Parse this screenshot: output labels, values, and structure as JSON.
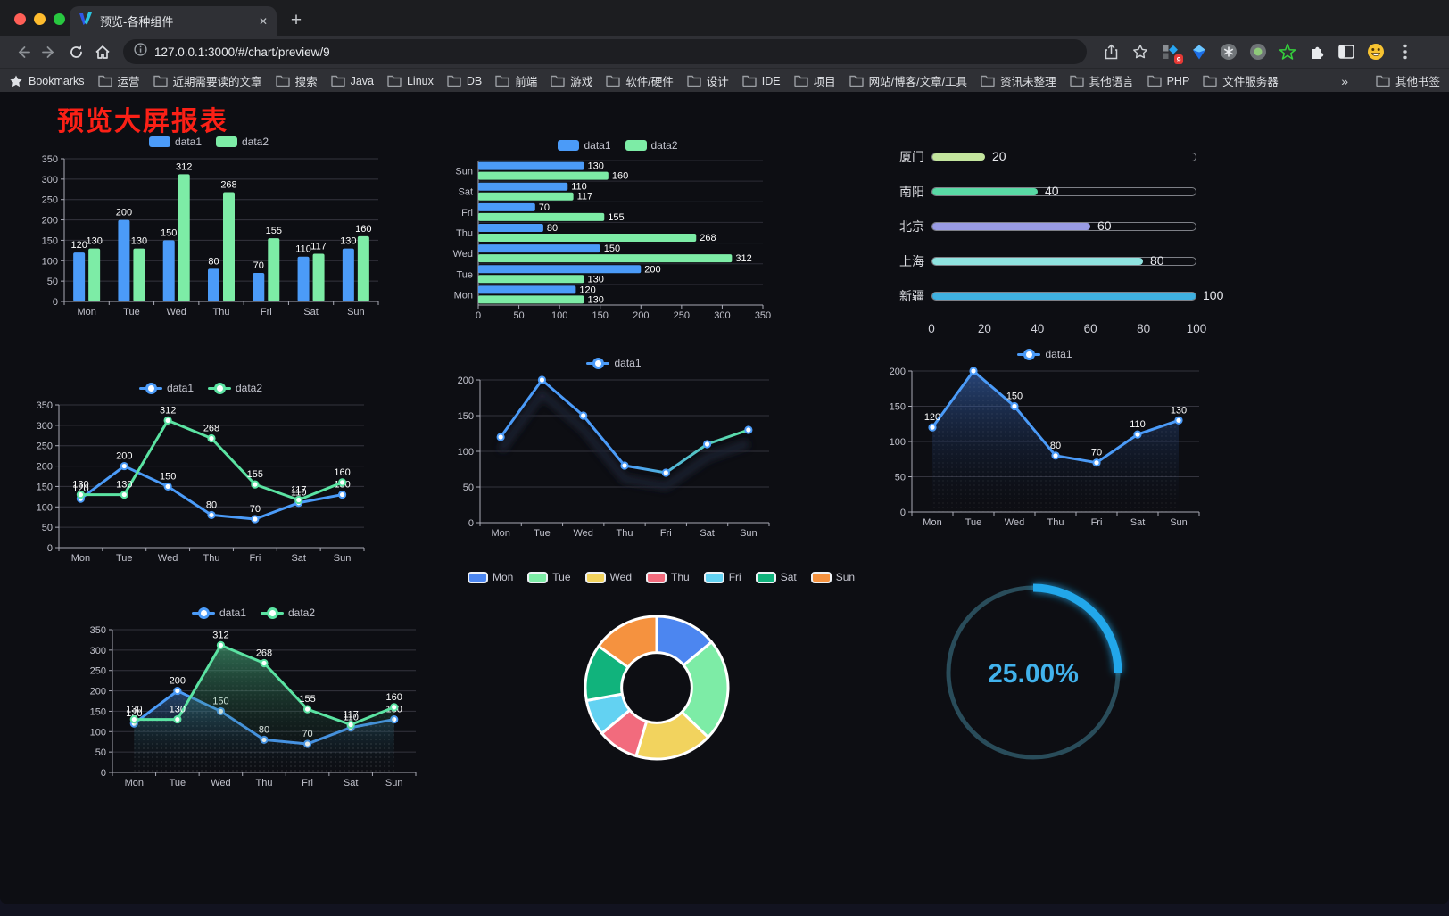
{
  "browser": {
    "tab_title": "预览-各种组件",
    "url": "127.0.0.1:3000/#/chart/preview/9",
    "bookmarks_label": "Bookmarks",
    "bookmarks": [
      "运营",
      "近期需要读的文章",
      "搜索",
      "Java",
      "Linux",
      "DB",
      "前端",
      "游戏",
      "软件/硬件",
      "设计",
      "IDE",
      "项目",
      "网站/博客/文章/工具",
      "资讯未整理",
      "其他语言",
      "PHP",
      "文件服务器"
    ],
    "bookmarks_overflow": "»",
    "other_bookmarks": "其他书签",
    "extension_badge": "9"
  },
  "page": {
    "title": "预览大屏报表",
    "title_color": "#fb2016",
    "background": "#0d0e13"
  },
  "chart_data": [
    {
      "slot": "c1",
      "type": "bar",
      "categories": [
        "Mon",
        "Tue",
        "Wed",
        "Thu",
        "Fri",
        "Sat",
        "Sun"
      ],
      "series": [
        {
          "name": "data1",
          "color": "#4b9bf8",
          "values": [
            120,
            200,
            150,
            80,
            70,
            110,
            130
          ]
        },
        {
          "name": "data2",
          "color": "#7deca6",
          "values": [
            130,
            130,
            312,
            268,
            155,
            117,
            160
          ]
        }
      ],
      "yticks": [
        0,
        50,
        100,
        150,
        200,
        250,
        300,
        350
      ],
      "ymax": 350,
      "labels": true,
      "legend_position": "top",
      "grid": true
    },
    {
      "slot": "c2",
      "type": "hbar",
      "categories": [
        "Mon",
        "Tue",
        "Wed",
        "Thu",
        "Fri",
        "Sat",
        "Sun"
      ],
      "series": [
        {
          "name": "data1",
          "color": "#4b9bf8",
          "values": [
            120,
            200,
            150,
            80,
            70,
            110,
            130
          ]
        },
        {
          "name": "data2",
          "color": "#7deca6",
          "values": [
            130,
            130,
            312,
            268,
            155,
            117,
            160
          ]
        }
      ],
      "xticks": [
        0,
        50,
        100,
        150,
        200,
        250,
        300,
        350
      ],
      "xmax": 350,
      "labels": true,
      "legend_position": "top"
    },
    {
      "slot": "c3",
      "type": "progress",
      "max": 100,
      "rows": [
        {
          "label": "厦门",
          "value": 20,
          "color": "#c3e59e"
        },
        {
          "label": "南阳",
          "value": 40,
          "color": "#59d9a5"
        },
        {
          "label": "北京",
          "value": 60,
          "color": "#999be4"
        },
        {
          "label": "上海",
          "value": 80,
          "color": "#8fe3e0"
        },
        {
          "label": "新疆",
          "value": 100,
          "color": "#3fb0e0"
        }
      ],
      "xticks": [
        0,
        20,
        40,
        60,
        80,
        100
      ]
    },
    {
      "slot": "c4",
      "type": "line",
      "categories": [
        "Mon",
        "Tue",
        "Wed",
        "Thu",
        "Fri",
        "Sat",
        "Sun"
      ],
      "series": [
        {
          "name": "data1",
          "color": "#4b9bf8",
          "values": [
            120,
            200,
            150,
            80,
            70,
            110,
            130
          ]
        },
        {
          "name": "data2",
          "color": "#5be3a2",
          "values": [
            130,
            130,
            312,
            268,
            155,
            117,
            160
          ]
        }
      ],
      "yticks": [
        0,
        50,
        100,
        150,
        200,
        250,
        300,
        350
      ],
      "ymax": 350,
      "labels": true,
      "markers": true,
      "legend_position": "top"
    },
    {
      "slot": "c5",
      "type": "line",
      "categories": [
        "Mon",
        "Tue",
        "Wed",
        "Thu",
        "Fri",
        "Sat",
        "Sun"
      ],
      "series": [
        {
          "name": "data1",
          "color": "#4b9bf8",
          "gradient": [
            "#4b9bf8",
            "#4b9bf8",
            "#5be3a2"
          ],
          "values": [
            120,
            200,
            150,
            80,
            70,
            110,
            130
          ]
        }
      ],
      "yticks": [
        0,
        50,
        100,
        150,
        200
      ],
      "ymax": 200,
      "labels": false,
      "markers": true,
      "shadow": true,
      "legend_position": "top"
    },
    {
      "slot": "c6",
      "type": "line",
      "categories": [
        "Mon",
        "Tue",
        "Wed",
        "Thu",
        "Fri",
        "Sat",
        "Sun"
      ],
      "series": [
        {
          "name": "data1",
          "color": "#4b9bf8",
          "area": [
            "rgba(62,115,205,0.55)",
            "rgba(10,20,40,0)"
          ],
          "values": [
            120,
            200,
            150,
            80,
            70,
            110,
            130
          ]
        }
      ],
      "yticks": [
        0,
        50,
        100,
        150,
        200
      ],
      "ymax": 200,
      "labels": true,
      "markers": true,
      "decal": true,
      "legend_position": "top"
    },
    {
      "slot": "c7",
      "type": "line",
      "categories": [
        "Mon",
        "Tue",
        "Wed",
        "Thu",
        "Fri",
        "Sat",
        "Sun"
      ],
      "series": [
        {
          "name": "data1",
          "color": "#4b9bf8",
          "area": [
            "rgba(75,155,248,0.40)",
            "rgba(10,20,40,0)"
          ],
          "values": [
            120,
            200,
            150,
            80,
            70,
            110,
            130
          ]
        },
        {
          "name": "data2",
          "color": "#5be3a2",
          "area": [
            "rgba(85,210,150,0.50)",
            "rgba(10,35,25,0)"
          ],
          "values": [
            130,
            130,
            312,
            268,
            155,
            117,
            160
          ]
        }
      ],
      "yticks": [
        0,
        50,
        100,
        150,
        200,
        250,
        300,
        350
      ],
      "ymax": 350,
      "labels": true,
      "markers": true,
      "decal": true,
      "legend_position": "top"
    },
    {
      "slot": "c8",
      "type": "pie",
      "items": [
        {
          "label": "Mon",
          "value": 120,
          "color": "#4c86f0"
        },
        {
          "label": "Tue",
          "value": 200,
          "color": "#7deca6"
        },
        {
          "label": "Wed",
          "value": 150,
          "color": "#f2d35e"
        },
        {
          "label": "Thu",
          "value": 80,
          "color": "#f26b7d"
        },
        {
          "label": "Fri",
          "value": 70,
          "color": "#63d2f2"
        },
        {
          "label": "Sat",
          "value": 110,
          "color": "#11b37c"
        },
        {
          "label": "Sun",
          "value": 130,
          "color": "#f5923f"
        }
      ],
      "legend_position": "top",
      "inner_radius_pct": 60
    },
    {
      "slot": "c9",
      "type": "gauge",
      "percent": 25,
      "label": "25.00%",
      "track_color": "#294c5a",
      "arc_color": "#23a7ea",
      "text_color": "#41b2ec"
    }
  ]
}
